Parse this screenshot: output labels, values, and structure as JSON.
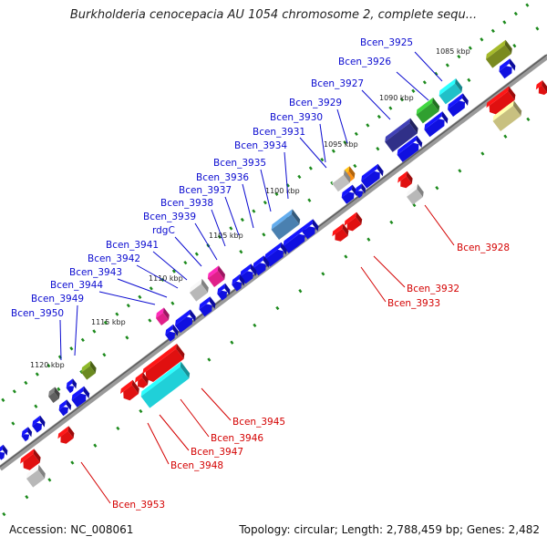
{
  "title": "Burkholderia cenocepacia AU 1054 chromosome 2, complete sequ...",
  "footer": {
    "accession": "Accession: NC_008061",
    "summary": "Topology: circular; Length: 2,788,459 bp; Genes: 2,482"
  },
  "colors": {
    "forward_label": "#0b0bd0",
    "reverse_label": "#d40000",
    "backbone": "#7a7a7a",
    "tick": "#1c8a1c"
  },
  "kbp_markers": [
    "1085 kbp",
    "1090 kbp",
    "1095 kbp",
    "1100 kbp",
    "1105 kbp",
    "1110 kbp",
    "1115 kbp",
    "1120 kbp"
  ],
  "forward_genes": [
    "Bcen_3925",
    "Bcen_3926",
    "Bcen_3927",
    "Bcen_3929",
    "Bcen_3930",
    "Bcen_3931",
    "Bcen_3934",
    "Bcen_3935",
    "Bcen_3936",
    "Bcen_3937",
    "Bcen_3938",
    "Bcen_3939",
    "rdgC",
    "Bcen_3941",
    "Bcen_3942",
    "Bcen_3943",
    "Bcen_3944",
    "Bcen_3949",
    "Bcen_3950"
  ],
  "reverse_genes": [
    "Bcen_3928",
    "Bcen_3932",
    "Bcen_3933",
    "Bcen_3945",
    "Bcen_3946",
    "Bcen_3947",
    "Bcen_3948",
    "Bcen_3953"
  ]
}
